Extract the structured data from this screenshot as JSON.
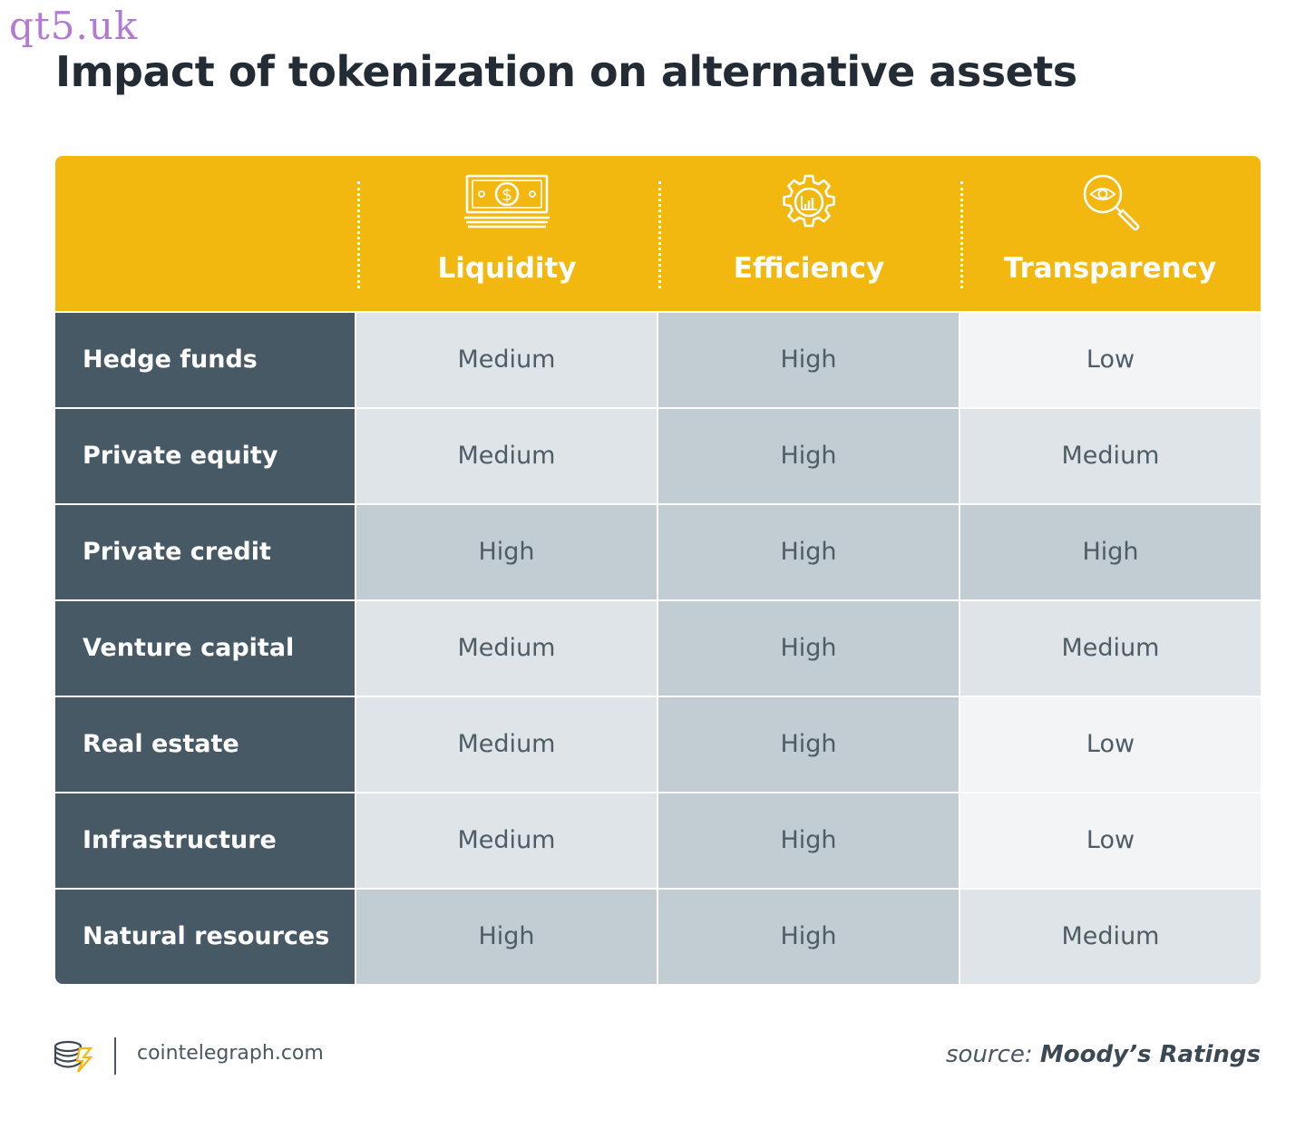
{
  "watermark": "qt5.uk",
  "title": "Impact of tokenization on alternative assets",
  "colors": {
    "header": "#f3b80f",
    "row_label_bg": "#465964",
    "level_high": "#c2cdd3",
    "level_medium": "#dfe4e8",
    "level_low": "#f2f4f6"
  },
  "chart_data": {
    "type": "table",
    "title": "Impact of tokenization on alternative assets",
    "columns": [
      {
        "label": "Liquidity",
        "icon": "money-bill-icon"
      },
      {
        "label": "Efficiency",
        "icon": "gear-chart-icon"
      },
      {
        "label": "Transparency",
        "icon": "magnifier-eye-icon"
      }
    ],
    "rows": [
      {
        "label": "Hedge funds",
        "values": [
          "Medium",
          "High",
          "Low"
        ]
      },
      {
        "label": "Private equity",
        "values": [
          "Medium",
          "High",
          "Medium"
        ]
      },
      {
        "label": "Private credit",
        "values": [
          "High",
          "High",
          "High"
        ]
      },
      {
        "label": "Venture capital",
        "values": [
          "Medium",
          "High",
          "Medium"
        ]
      },
      {
        "label": "Real estate",
        "values": [
          "Medium",
          "High",
          "Low"
        ]
      },
      {
        "label": "Infrastructure",
        "values": [
          "Medium",
          "High",
          "Low"
        ]
      },
      {
        "label": "Natural resources",
        "values": [
          "High",
          "High",
          "Medium"
        ]
      }
    ]
  },
  "footer": {
    "logo_icon": "cointelegraph-logo-icon",
    "site": "cointelegraph.com",
    "source_prefix": "source:",
    "source_name": "Moody’s Ratings"
  }
}
